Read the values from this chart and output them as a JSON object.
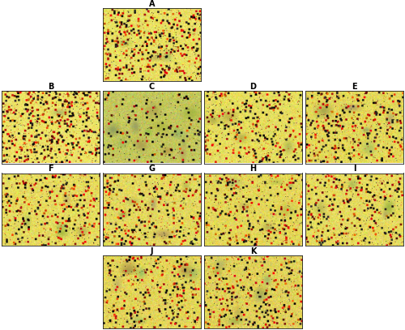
{
  "layout": {
    "figure_width": 5.0,
    "figure_height": 4.07,
    "dpi": 100,
    "background_color": "#ffffff",
    "label_fontsize": 7,
    "label_fontweight": "bold",
    "label_color": "#000000"
  },
  "panels": [
    {
      "label": "A",
      "row": 0,
      "col": 1,
      "seed": 42,
      "red_density": 0.025,
      "dark_density": 0.018,
      "green_blob_count": 3,
      "bg_r": [
        0.82,
        1.0
      ],
      "bg_g": [
        0.78,
        0.98
      ],
      "bg_b": [
        0.22,
        0.55
      ]
    },
    {
      "label": "B",
      "row": 1,
      "col": 0,
      "seed": 10,
      "red_density": 0.03,
      "dark_density": 0.022,
      "green_blob_count": 1,
      "bg_r": [
        0.85,
        1.0
      ],
      "bg_g": [
        0.8,
        0.98
      ],
      "bg_b": [
        0.25,
        0.55
      ]
    },
    {
      "label": "C",
      "row": 1,
      "col": 1,
      "seed": 20,
      "red_density": 0.005,
      "dark_density": 0.012,
      "green_blob_count": 12,
      "bg_r": [
        0.65,
        0.88
      ],
      "bg_g": [
        0.68,
        0.88
      ],
      "bg_b": [
        0.22,
        0.5
      ]
    },
    {
      "label": "D",
      "row": 1,
      "col": 2,
      "seed": 30,
      "red_density": 0.018,
      "dark_density": 0.015,
      "green_blob_count": 4,
      "bg_r": [
        0.8,
        1.0
      ],
      "bg_g": [
        0.78,
        0.96
      ],
      "bg_b": [
        0.22,
        0.52
      ]
    },
    {
      "label": "E",
      "row": 1,
      "col": 3,
      "seed": 40,
      "red_density": 0.02,
      "dark_density": 0.016,
      "green_blob_count": 5,
      "bg_r": [
        0.78,
        1.0
      ],
      "bg_g": [
        0.75,
        0.95
      ],
      "bg_b": [
        0.2,
        0.5
      ]
    },
    {
      "label": "F",
      "row": 2,
      "col": 0,
      "seed": 50,
      "red_density": 0.018,
      "dark_density": 0.014,
      "green_blob_count": 5,
      "bg_r": [
        0.8,
        1.0
      ],
      "bg_g": [
        0.76,
        0.96
      ],
      "bg_b": [
        0.22,
        0.52
      ]
    },
    {
      "label": "G",
      "row": 2,
      "col": 1,
      "seed": 60,
      "red_density": 0.018,
      "dark_density": 0.013,
      "green_blob_count": 5,
      "bg_r": [
        0.78,
        1.0
      ],
      "bg_g": [
        0.75,
        0.95
      ],
      "bg_b": [
        0.22,
        0.52
      ]
    },
    {
      "label": "H",
      "row": 2,
      "col": 2,
      "seed": 70,
      "red_density": 0.016,
      "dark_density": 0.013,
      "green_blob_count": 6,
      "bg_r": [
        0.78,
        1.0
      ],
      "bg_g": [
        0.75,
        0.94
      ],
      "bg_b": [
        0.2,
        0.5
      ]
    },
    {
      "label": "I",
      "row": 2,
      "col": 3,
      "seed": 80,
      "red_density": 0.018,
      "dark_density": 0.014,
      "green_blob_count": 4,
      "bg_r": [
        0.8,
        1.0
      ],
      "bg_g": [
        0.76,
        0.96
      ],
      "bg_b": [
        0.22,
        0.52
      ]
    },
    {
      "label": "J",
      "row": 3,
      "col": 1,
      "seed": 90,
      "red_density": 0.018,
      "dark_density": 0.014,
      "green_blob_count": 7,
      "bg_r": [
        0.78,
        1.0
      ],
      "bg_g": [
        0.74,
        0.94
      ],
      "bg_b": [
        0.2,
        0.5
      ]
    },
    {
      "label": "K",
      "row": 3,
      "col": 2,
      "seed": 100,
      "red_density": 0.016,
      "dark_density": 0.014,
      "green_blob_count": 7,
      "bg_r": [
        0.76,
        1.0
      ],
      "bg_g": [
        0.72,
        0.93
      ],
      "bg_b": [
        0.2,
        0.5
      ]
    }
  ]
}
